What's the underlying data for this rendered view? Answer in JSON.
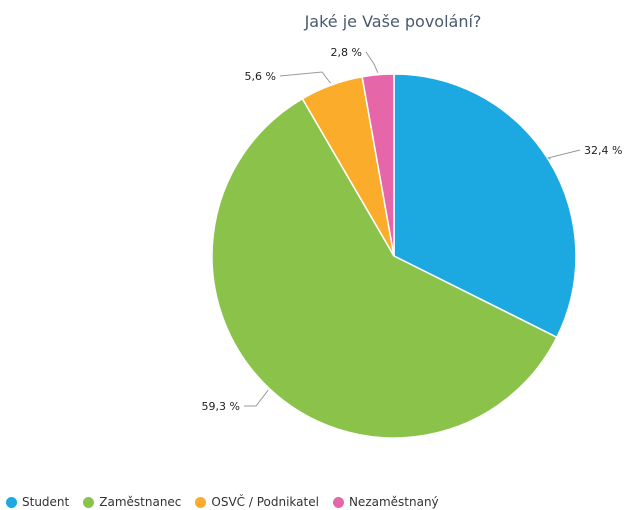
{
  "chart_data": {
    "type": "pie",
    "title": "Jaké je Vaše povolání?",
    "categories": [
      "Student",
      "Zaměstnanec",
      "OSVČ / Podnikatel",
      "Nezaměstnaný"
    ],
    "values": [
      32.4,
      59.3,
      5.6,
      2.8
    ],
    "labels": [
      "32,4 %",
      "59,3 %",
      "5,6 %",
      "2,8 %"
    ],
    "colors": [
      "#1ca9e1",
      "#8bc34a",
      "#fbac2a",
      "#e566a9"
    ],
    "legend_position": "bottom-left"
  }
}
